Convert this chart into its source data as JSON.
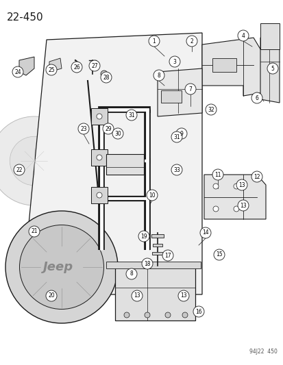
{
  "title": "22-450",
  "footer": "94J22  450",
  "bg_color": "#ffffff",
  "line_color": "#1a1a1a",
  "fig_width": 4.14,
  "fig_height": 5.33,
  "dpi": 100
}
